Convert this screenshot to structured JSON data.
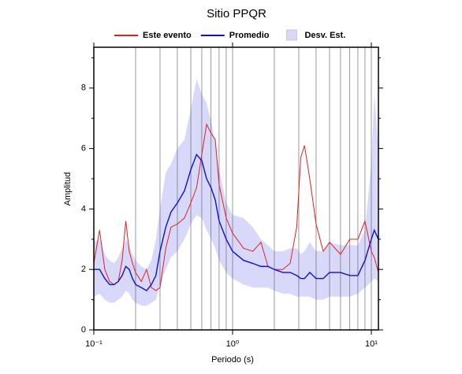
{
  "chart_data": {
    "type": "line",
    "title": "Sitio PPQR",
    "xlabel": "Periodo (s)",
    "ylabel": "Amplitud",
    "xscale": "log",
    "xlim": [
      0.1,
      11.25
    ],
    "ylim": [
      0,
      9.35
    ],
    "xticks": [
      {
        "value": 0.1,
        "label": "10⁻¹"
      },
      {
        "value": 1,
        "label": "10⁰"
      },
      {
        "value": 10,
        "label": "10¹"
      }
    ],
    "xminorticks": [
      0.2,
      0.3,
      0.4,
      0.5,
      0.6,
      0.7,
      0.8,
      0.9,
      2,
      3,
      4,
      5,
      6,
      7,
      8,
      9
    ],
    "yticks": [
      0,
      2,
      4,
      6,
      8
    ],
    "yminorticks": [
      1,
      3,
      5,
      7,
      9
    ],
    "grid": true,
    "x": [
      0.1,
      0.11,
      0.12,
      0.13,
      0.14,
      0.15,
      0.16,
      0.17,
      0.18,
      0.19,
      0.2,
      0.22,
      0.24,
      0.26,
      0.28,
      0.3,
      0.33,
      0.36,
      0.4,
      0.45,
      0.5,
      0.55,
      0.6,
      0.65,
      0.7,
      0.75,
      0.8,
      0.9,
      1,
      1.2,
      1.4,
      1.6,
      1.8,
      2,
      2.3,
      2.6,
      2.9,
      3.1,
      3.3,
      3.6,
      4,
      4.5,
      5,
      6,
      7,
      8,
      9,
      10,
      10.5,
      11.25
    ],
    "series": [
      {
        "name": "Este evento",
        "color": "#e02020",
        "values": [
          2.2,
          3.3,
          2.0,
          1.6,
          1.5,
          1.6,
          2.3,
          3.6,
          2.6,
          2.2,
          1.9,
          1.6,
          2.0,
          1.4,
          1.3,
          1.4,
          2.7,
          3.4,
          3.5,
          3.7,
          4.2,
          4.7,
          5.8,
          6.8,
          6.5,
          6.3,
          4.8,
          3.7,
          3.2,
          2.7,
          2.6,
          2.9,
          2.1,
          2.0,
          2.0,
          2.2,
          3.4,
          5.7,
          6.1,
          5.0,
          3.5,
          2.6,
          2.9,
          2.5,
          3.0,
          3.0,
          3.6,
          2.6,
          2.4,
          1.9
        ]
      },
      {
        "name": "Promedio",
        "color": "#1010d0",
        "values": [
          2.0,
          2.0,
          1.7,
          1.5,
          1.5,
          1.6,
          1.8,
          2.1,
          2.0,
          1.7,
          1.5,
          1.4,
          1.3,
          1.5,
          1.8,
          2.6,
          3.4,
          3.9,
          4.2,
          4.6,
          5.3,
          5.8,
          5.6,
          5.0,
          4.7,
          4.3,
          3.6,
          3.0,
          2.6,
          2.3,
          2.2,
          2.1,
          2.1,
          2.0,
          1.9,
          1.9,
          1.8,
          1.7,
          1.7,
          1.9,
          1.7,
          1.7,
          1.9,
          1.9,
          1.8,
          1.8,
          2.3,
          3.0,
          3.3,
          3.0
        ]
      }
    ],
    "band": {
      "name": "Desv. Est.",
      "color": "#d8d8fa",
      "upper": [
        2.9,
        3.0,
        2.5,
        2.3,
        2.2,
        2.4,
        2.7,
        3.0,
        2.8,
        2.5,
        2.3,
        2.1,
        2.0,
        2.3,
        3.0,
        4.0,
        5.2,
        5.5,
        6.0,
        6.3,
        7.3,
        8.3,
        7.8,
        7.5,
        6.9,
        6.2,
        5.3,
        4.2,
        3.8,
        3.7,
        3.4,
        3.0,
        2.8,
        2.6,
        2.6,
        2.7,
        2.7,
        2.5,
        2.6,
        2.9,
        2.6,
        2.6,
        2.9,
        2.8,
        2.8,
        2.8,
        3.3,
        5.5,
        7.8,
        6.0
      ],
      "lower": [
        1.1,
        1.2,
        1.0,
        0.9,
        0.9,
        1.0,
        1.1,
        1.3,
        1.2,
        1.0,
        0.9,
        0.8,
        0.8,
        0.9,
        1.0,
        1.5,
        2.0,
        2.4,
        2.6,
        3.0,
        3.5,
        3.8,
        3.7,
        3.3,
        3.0,
        2.7,
        2.3,
        1.9,
        1.7,
        1.5,
        1.4,
        1.4,
        1.4,
        1.3,
        1.2,
        1.2,
        1.1,
        1.1,
        1.1,
        1.1,
        1.0,
        1.0,
        1.1,
        1.1,
        1.1,
        1.2,
        1.4,
        1.6,
        1.7,
        1.6
      ]
    }
  }
}
